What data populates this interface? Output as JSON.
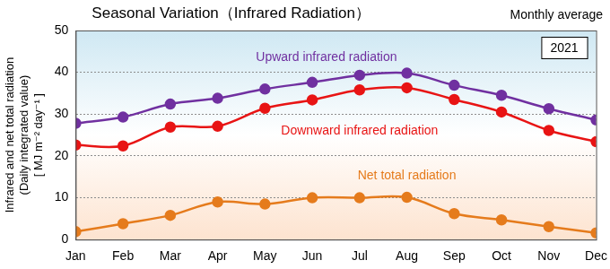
{
  "chart_data": {
    "type": "line",
    "title": "Seasonal Variation（Infrared Radiation）",
    "subtitle": "Monthly average",
    "annotations": [
      "2021"
    ],
    "y_label": [
      "Infrared and net total radiation",
      "(Daily integrated value)",
      "[ MJ m⁻² day⁻¹ ]"
    ],
    "categories": [
      "Jan",
      "Feb",
      "Mar",
      "Apr",
      "May",
      "Jun",
      "Jul",
      "Aug",
      "Sep",
      "Oct",
      "Nov",
      "Dec"
    ],
    "series": [
      {
        "name": "Upward infrared radiation",
        "color": "#7030a0",
        "marker": "circle",
        "values": [
          27.8,
          29.3,
          32.4,
          33.8,
          36.0,
          37.6,
          39.3,
          39.8,
          36.9,
          34.5,
          31.3,
          28.6
        ]
      },
      {
        "name": "Downward infrared radiation",
        "color": "#e81414",
        "marker": "circle",
        "values": [
          22.6,
          22.4,
          26.9,
          27.1,
          31.4,
          33.4,
          35.8,
          36.3,
          33.5,
          30.5,
          26.1,
          23.4
        ]
      },
      {
        "name": "Net total radiation",
        "color": "#e57b1c",
        "marker": "circle",
        "values": [
          1.9,
          3.8,
          5.8,
          9.0,
          8.5,
          10.0,
          10.0,
          10.1,
          6.2,
          4.7,
          3.1,
          1.6
        ]
      }
    ],
    "ylim": [
      0,
      50
    ],
    "yticks": [
      0,
      10,
      20,
      30,
      40,
      50
    ],
    "grid": true
  }
}
